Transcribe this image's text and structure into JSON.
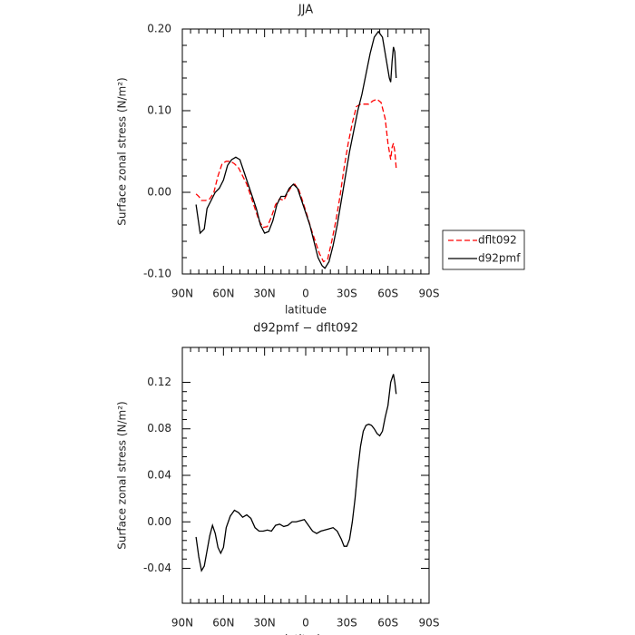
{
  "chart_data": [
    {
      "type": "line",
      "title": "JJA",
      "xlabel": "latitude",
      "ylabel": "Surface zonal stress (N/m²)",
      "xlim": [
        90,
        -90
      ],
      "xticks": [
        {
          "value": 90,
          "label": "90N"
        },
        {
          "value": 60,
          "label": "60N"
        },
        {
          "value": 30,
          "label": "30N"
        },
        0,
        {
          "value": -30,
          "label": "30S"
        },
        {
          "value": -60,
          "label": "60S"
        },
        {
          "value": -90,
          "label": "90S"
        }
      ],
      "ylim": [
        -0.1,
        0.2
      ],
      "yticks": [
        {
          "value": -0.1,
          "label": "-0.10"
        },
        {
          "value": 0,
          "label": "0.00"
        },
        {
          "value": 0.1,
          "label": "0.10"
        },
        {
          "value": 0.2,
          "label": "0.20"
        }
      ],
      "legend": "right",
      "series": [
        {
          "name": "dflt092",
          "color": "#ff0000",
          "dashed": true,
          "x": [
            80,
            78,
            76,
            73,
            70,
            67,
            64,
            61,
            58,
            55,
            52,
            49,
            46,
            43,
            40,
            37,
            34,
            31,
            28,
            25,
            22,
            19,
            16,
            13,
            10,
            8,
            5,
            2,
            -1,
            -4,
            -7,
            -10,
            -13,
            -16,
            -19,
            -22,
            -25,
            -28,
            -31,
            -34,
            -37,
            -40,
            -43,
            -46,
            -49,
            -52,
            -55,
            -58,
            -60,
            -62,
            -63,
            -64,
            -65,
            -66
          ],
          "values": [
            -0.002,
            -0.005,
            -0.01,
            -0.01,
            -0.008,
            0.0,
            0.02,
            0.035,
            0.038,
            0.038,
            0.035,
            0.03,
            0.02,
            0.01,
            -0.005,
            -0.02,
            -0.035,
            -0.043,
            -0.042,
            -0.03,
            -0.015,
            -0.008,
            -0.01,
            0.0,
            0.008,
            0.01,
            0.003,
            -0.012,
            -0.028,
            -0.045,
            -0.06,
            -0.075,
            -0.085,
            -0.082,
            -0.06,
            -0.035,
            -0.005,
            0.03,
            0.06,
            0.085,
            0.105,
            0.108,
            0.108,
            0.108,
            0.112,
            0.114,
            0.11,
            0.09,
            0.06,
            0.04,
            0.055,
            0.06,
            0.05,
            0.03
          ]
        },
        {
          "name": "d92pmf",
          "color": "#000000",
          "dashed": false,
          "x": [
            80,
            77,
            74,
            72,
            69,
            66,
            63,
            60,
            57,
            54,
            51,
            48,
            45,
            42,
            39,
            36,
            33,
            30,
            27,
            24,
            21,
            18,
            15,
            12,
            9,
            6,
            3,
            0,
            -3,
            -6,
            -9,
            -12,
            -14,
            -17,
            -20,
            -23,
            -26,
            -29,
            -32,
            -35,
            -38,
            -41,
            -44,
            -47,
            -50,
            -53,
            -56,
            -59,
            -61,
            -62,
            -63,
            -64,
            -65,
            -66
          ],
          "values": [
            -0.015,
            -0.05,
            -0.045,
            -0.02,
            -0.01,
            0.0,
            0.005,
            0.015,
            0.033,
            0.04,
            0.043,
            0.04,
            0.025,
            0.01,
            -0.005,
            -0.02,
            -0.04,
            -0.05,
            -0.048,
            -0.035,
            -0.015,
            -0.005,
            -0.005,
            0.005,
            0.01,
            0.005,
            -0.01,
            -0.025,
            -0.04,
            -0.06,
            -0.08,
            -0.09,
            -0.093,
            -0.085,
            -0.065,
            -0.04,
            -0.01,
            0.02,
            0.05,
            0.075,
            0.1,
            0.12,
            0.145,
            0.17,
            0.19,
            0.197,
            0.19,
            0.16,
            0.14,
            0.135,
            0.16,
            0.178,
            0.172,
            0.14
          ]
        }
      ]
    },
    {
      "type": "line",
      "title": "d92pmf − dflt092",
      "xlabel": "latitude",
      "ylabel": "Surface zonal stress (N/m²)",
      "xlim": [
        90,
        -90
      ],
      "xticks": [
        {
          "value": 90,
          "label": "90N"
        },
        {
          "value": 60,
          "label": "60N"
        },
        {
          "value": 30,
          "label": "30N"
        },
        0,
        {
          "value": -30,
          "label": "30S"
        },
        {
          "value": -60,
          "label": "60S"
        },
        {
          "value": -90,
          "label": "90S"
        }
      ],
      "ylim": [
        -0.07,
        0.15
      ],
      "yticks": [
        {
          "value": -0.04,
          "label": "-0.04"
        },
        {
          "value": 0,
          "label": "0.00"
        },
        {
          "value": 0.04,
          "label": "0.04"
        },
        {
          "value": 0.08,
          "label": "0.08"
        },
        {
          "value": 0.12,
          "label": "0.12"
        }
      ],
      "series": [
        {
          "color": "#000000",
          "dashed": false,
          "x": [
            80,
            78,
            76,
            74,
            72,
            70,
            68,
            66,
            64,
            62,
            60,
            58,
            55,
            52,
            49,
            46,
            43,
            40,
            37,
            34,
            31,
            28,
            25,
            22,
            19,
            16,
            13,
            10,
            7,
            4,
            1,
            -2,
            -5,
            -8,
            -11,
            -14,
            -17,
            -20,
            -23,
            -26,
            -28,
            -30,
            -32,
            -34,
            -36,
            -38,
            -40,
            -42,
            -44,
            -46,
            -48,
            -50,
            -52,
            -54,
            -56,
            -58,
            -60,
            -62,
            -64,
            -65,
            -66
          ],
          "values": [
            -0.013,
            -0.03,
            -0.042,
            -0.038,
            -0.025,
            -0.012,
            -0.003,
            -0.01,
            -0.022,
            -0.027,
            -0.022,
            -0.005,
            0.005,
            0.01,
            0.008,
            0.004,
            0.006,
            0.003,
            -0.005,
            -0.008,
            -0.008,
            -0.007,
            -0.008,
            -0.003,
            -0.002,
            -0.004,
            -0.003,
            0.0,
            0.0,
            0.001,
            0.002,
            -0.003,
            -0.008,
            -0.01,
            -0.008,
            -0.007,
            -0.006,
            -0.005,
            -0.008,
            -0.015,
            -0.021,
            -0.021,
            -0.015,
            0.0,
            0.02,
            0.045,
            0.065,
            0.078,
            0.083,
            0.084,
            0.083,
            0.08,
            0.076,
            0.074,
            0.078,
            0.09,
            0.1,
            0.12,
            0.127,
            0.12,
            0.11
          ]
        }
      ]
    }
  ]
}
